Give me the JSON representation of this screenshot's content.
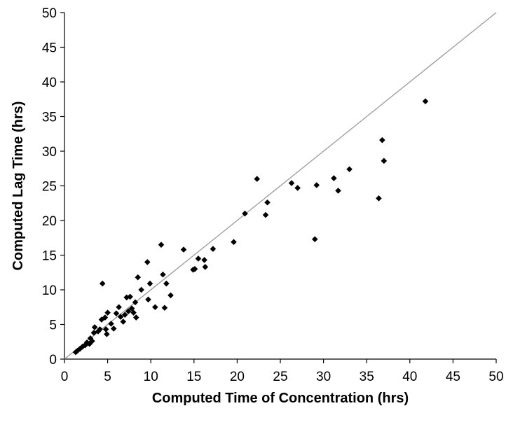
{
  "chart_data": {
    "type": "scatter",
    "title": "",
    "xlabel": "Computed Time of Concentration (hrs)",
    "ylabel": "Computed Lag Time (hrs)",
    "xlim": [
      0,
      50
    ],
    "ylim": [
      0,
      50
    ],
    "x_ticks": [
      "0",
      "5",
      "10",
      "15",
      "20",
      "25",
      "30",
      "35",
      "40",
      "45",
      "50"
    ],
    "y_ticks": [
      "0",
      "5",
      "10",
      "15",
      "20",
      "25",
      "30",
      "35",
      "40",
      "45",
      "50"
    ],
    "grid": false,
    "legend": "none",
    "marker": "diamond",
    "marker_color": "#000000",
    "reference_line": {
      "x": [
        0,
        50
      ],
      "y": [
        0,
        50
      ],
      "color": "#999999"
    },
    "points": [
      [
        1.3,
        1.0
      ],
      [
        1.5,
        1.2
      ],
      [
        1.8,
        1.5
      ],
      [
        2.1,
        1.8
      ],
      [
        2.4,
        2.0
      ],
      [
        2.6,
        2.4
      ],
      [
        2.9,
        2.2
      ],
      [
        3.0,
        3.0
      ],
      [
        3.2,
        2.6
      ],
      [
        3.4,
        3.8
      ],
      [
        3.5,
        4.6
      ],
      [
        3.9,
        4.0
      ],
      [
        4.1,
        4.3
      ],
      [
        4.3,
        5.7
      ],
      [
        4.4,
        10.9
      ],
      [
        4.7,
        6.0
      ],
      [
        4.8,
        4.3
      ],
      [
        4.9,
        3.6
      ],
      [
        5.0,
        6.7
      ],
      [
        5.4,
        5.1
      ],
      [
        5.7,
        4.4
      ],
      [
        6.0,
        6.6
      ],
      [
        6.3,
        7.5
      ],
      [
        6.5,
        6.1
      ],
      [
        6.8,
        5.4
      ],
      [
        7.0,
        6.4
      ],
      [
        7.2,
        8.9
      ],
      [
        7.4,
        6.9
      ],
      [
        7.6,
        9.0
      ],
      [
        7.8,
        7.3
      ],
      [
        8.0,
        6.7
      ],
      [
        8.2,
        8.2
      ],
      [
        8.3,
        6.0
      ],
      [
        8.5,
        11.8
      ],
      [
        8.9,
        10.0
      ],
      [
        9.6,
        14.0
      ],
      [
        9.7,
        8.6
      ],
      [
        9.9,
        10.9
      ],
      [
        10.5,
        7.5
      ],
      [
        11.2,
        16.5
      ],
      [
        11.4,
        12.2
      ],
      [
        11.6,
        7.4
      ],
      [
        11.8,
        10.9
      ],
      [
        12.3,
        9.2
      ],
      [
        13.8,
        15.8
      ],
      [
        14.9,
        12.9
      ],
      [
        15.1,
        13.0
      ],
      [
        15.5,
        14.5
      ],
      [
        16.2,
        14.3
      ],
      [
        16.3,
        13.3
      ],
      [
        17.2,
        15.9
      ],
      [
        19.6,
        16.9
      ],
      [
        20.9,
        21.0
      ],
      [
        22.3,
        26.0
      ],
      [
        23.3,
        20.8
      ],
      [
        23.5,
        22.6
      ],
      [
        26.3,
        25.4
      ],
      [
        27.0,
        24.7
      ],
      [
        29.0,
        17.3
      ],
      [
        29.2,
        25.1
      ],
      [
        31.2,
        26.1
      ],
      [
        31.7,
        24.3
      ],
      [
        33.0,
        27.4
      ],
      [
        36.4,
        23.2
      ],
      [
        36.8,
        31.6
      ],
      [
        37.0,
        28.6
      ],
      [
        41.8,
        37.2
      ]
    ]
  }
}
